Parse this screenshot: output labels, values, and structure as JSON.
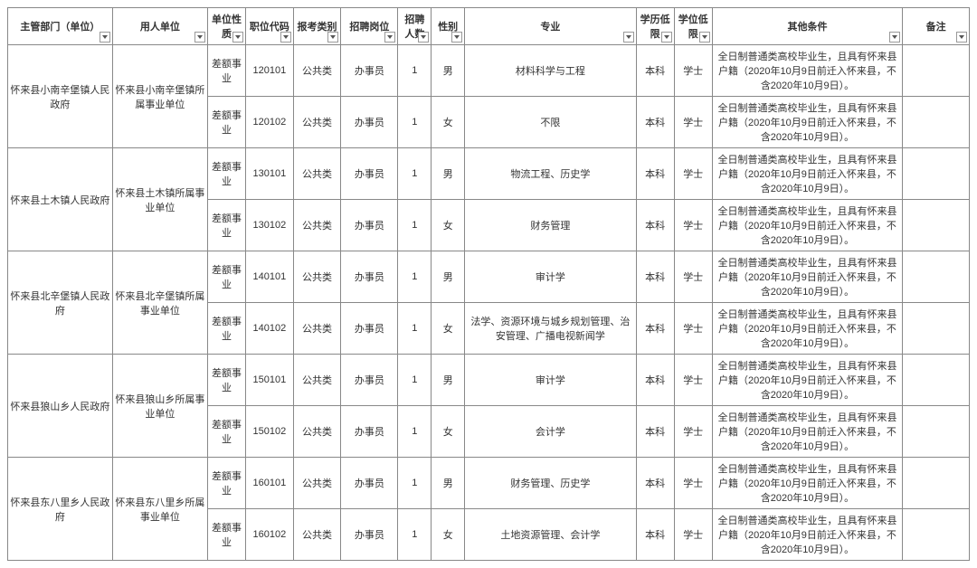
{
  "headers": {
    "dept": "主管部门（单位）",
    "employer": "用人单位",
    "nature": "单位性质",
    "code": "职位代码",
    "category": "报考类别",
    "position": "招聘岗位",
    "count": "招聘人数",
    "gender": "性别",
    "major": "专业",
    "education": "学历低限",
    "degree": "学位低限",
    "other": "其他条件",
    "note": "备注"
  },
  "groups": [
    {
      "dept": "怀来县小南辛堡镇人民政府",
      "employer": "怀来县小南辛堡镇所属事业单位",
      "rows": [
        {
          "nature": "差额事业",
          "code": "120101",
          "category": "公共类",
          "position": "办事员",
          "count": "1",
          "gender": "男",
          "major": "材料科学与工程",
          "education": "本科",
          "degree": "学士",
          "other": "全日制普通类高校毕业生，且具有怀来县户籍（2020年10月9日前迁入怀来县，不含2020年10月9日）。",
          "note": ""
        },
        {
          "nature": "差额事业",
          "code": "120102",
          "category": "公共类",
          "position": "办事员",
          "count": "1",
          "gender": "女",
          "major": "不限",
          "education": "本科",
          "degree": "学士",
          "other": "全日制普通类高校毕业生，且具有怀来县户籍（2020年10月9日前迁入怀来县，不含2020年10月9日）。",
          "note": ""
        }
      ]
    },
    {
      "dept": "怀来县土木镇人民政府",
      "employer": "怀来县土木镇所属事业单位",
      "rows": [
        {
          "nature": "差额事业",
          "code": "130101",
          "category": "公共类",
          "position": "办事员",
          "count": "1",
          "gender": "男",
          "major": "物流工程、历史学",
          "education": "本科",
          "degree": "学士",
          "other": "全日制普通类高校毕业生，且具有怀来县户籍（2020年10月9日前迁入怀来县，不含2020年10月9日）。",
          "note": ""
        },
        {
          "nature": "差额事业",
          "code": "130102",
          "category": "公共类",
          "position": "办事员",
          "count": "1",
          "gender": "女",
          "major": "财务管理",
          "education": "本科",
          "degree": "学士",
          "other": "全日制普通类高校毕业生，且具有怀来县户籍（2020年10月9日前迁入怀来县，不含2020年10月9日）。",
          "note": ""
        }
      ]
    },
    {
      "dept": "怀来县北辛堡镇人民政府",
      "employer": "怀来县北辛堡镇所属事业单位",
      "rows": [
        {
          "nature": "差额事业",
          "code": "140101",
          "category": "公共类",
          "position": "办事员",
          "count": "1",
          "gender": "男",
          "major": "审计学",
          "education": "本科",
          "degree": "学士",
          "other": "全日制普通类高校毕业生，且具有怀来县户籍（2020年10月9日前迁入怀来县，不含2020年10月9日）。",
          "note": ""
        },
        {
          "nature": "差额事业",
          "code": "140102",
          "category": "公共类",
          "position": "办事员",
          "count": "1",
          "gender": "女",
          "major": "法学、资源环境与城乡规划管理、治安管理、广播电视新闻学",
          "education": "本科",
          "degree": "学士",
          "other": "全日制普通类高校毕业生，且具有怀来县户籍（2020年10月9日前迁入怀来县，不含2020年10月9日）。",
          "note": ""
        }
      ]
    },
    {
      "dept": "怀来县狼山乡人民政府",
      "employer": "怀来县狼山乡所属事业单位",
      "rows": [
        {
          "nature": "差额事业",
          "code": "150101",
          "category": "公共类",
          "position": "办事员",
          "count": "1",
          "gender": "男",
          "major": "审计学",
          "education": "本科",
          "degree": "学士",
          "other": "全日制普通类高校毕业生，且具有怀来县户籍（2020年10月9日前迁入怀来县，不含2020年10月9日）。",
          "note": ""
        },
        {
          "nature": "差额事业",
          "code": "150102",
          "category": "公共类",
          "position": "办事员",
          "count": "1",
          "gender": "女",
          "major": "会计学",
          "education": "本科",
          "degree": "学士",
          "other": "全日制普通类高校毕业生，且具有怀来县户籍（2020年10月9日前迁入怀来县，不含2020年10月9日）。",
          "note": ""
        }
      ]
    },
    {
      "dept": "怀来县东八里乡人民政府",
      "employer": "怀来县东八里乡所属事业单位",
      "rows": [
        {
          "nature": "差额事业",
          "code": "160101",
          "category": "公共类",
          "position": "办事员",
          "count": "1",
          "gender": "男",
          "major": "财务管理、历史学",
          "education": "本科",
          "degree": "学士",
          "other": "全日制普通类高校毕业生，且具有怀来县户籍（2020年10月9日前迁入怀来县，不含2020年10月9日）。",
          "note": ""
        },
        {
          "nature": "差额事业",
          "code": "160102",
          "category": "公共类",
          "position": "办事员",
          "count": "1",
          "gender": "女",
          "major": "土地资源管理、会计学",
          "education": "本科",
          "degree": "学士",
          "other": "全日制普通类高校毕业生，且具有怀来县户籍（2020年10月9日前迁入怀来县，不含2020年10月9日）。",
          "note": ""
        }
      ]
    }
  ]
}
